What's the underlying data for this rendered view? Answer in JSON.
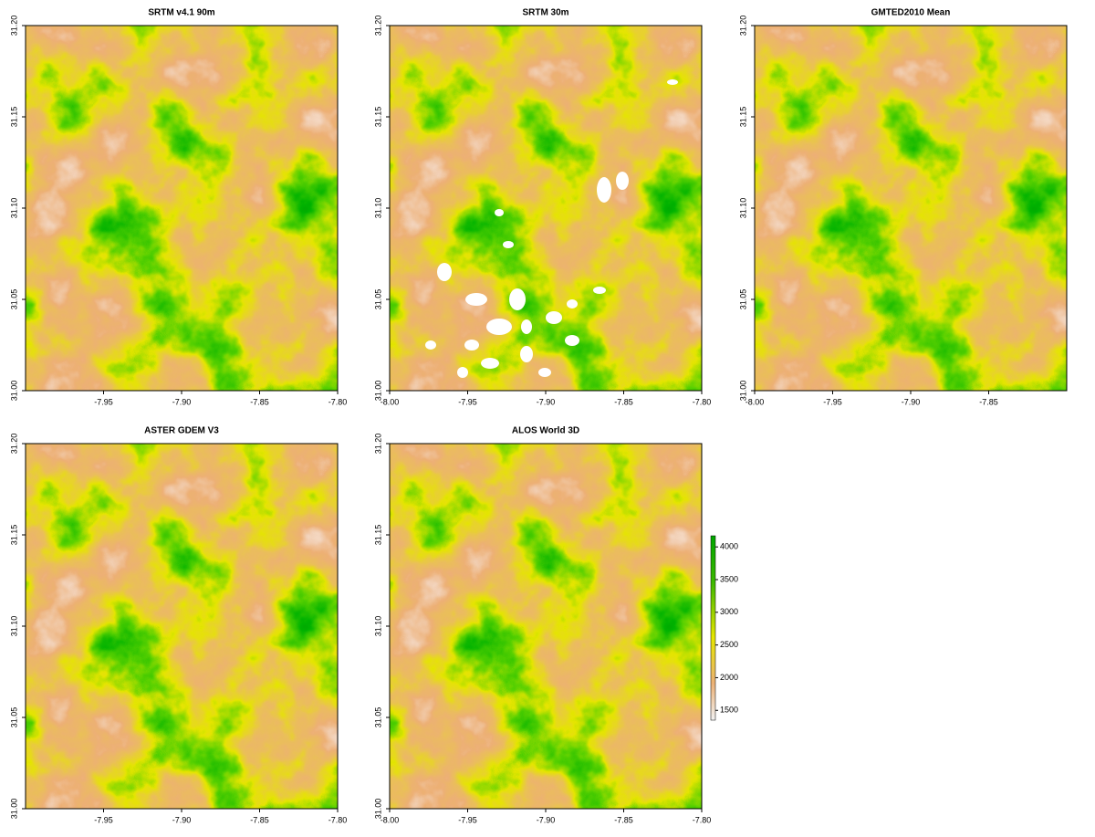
{
  "panels": [
    {
      "title": "SRTM v4.1 90m",
      "xlim": [
        -8.0,
        -7.8
      ],
      "ylim": [
        31.0,
        31.2
      ],
      "xticks": [
        -7.95,
        {
          "value": -7.9,
          "label": "-7.90"
        },
        -7.85,
        {
          "value": -7.8,
          "label": "-7.80"
        }
      ],
      "yticks": [
        {
          "value": 31.0,
          "label": "31.00"
        },
        31.05,
        {
          "value": 31.1,
          "label": "31.10"
        },
        31.15,
        {
          "value": 31.2,
          "label": "31.20"
        }
      ]
    },
    {
      "title": "SRTM 30m",
      "xlim": [
        -8.0,
        -7.8
      ],
      "ylim": [
        31.0,
        31.2
      ],
      "xticks": [
        {
          "value": -8.0,
          "label": "-8.00"
        },
        -7.95,
        {
          "value": -7.9,
          "label": "-7.90"
        },
        -7.85,
        {
          "value": -7.8,
          "label": "-7.80"
        }
      ],
      "yticks": [
        {
          "value": 31.0,
          "label": "31.00"
        },
        31.05,
        {
          "value": 31.1,
          "label": "31.10"
        },
        31.15,
        {
          "value": 31.2,
          "label": "31.20"
        }
      ]
    },
    {
      "title": "GMTED2010 Mean",
      "xlim": [
        -8.0,
        -7.8
      ],
      "ylim": [
        31.0,
        31.2
      ],
      "xticks": [
        {
          "value": -8.0,
          "label": "-8.00"
        },
        -7.95,
        {
          "value": -7.9,
          "label": "-7.90"
        },
        -7.85
      ],
      "yticks": [
        {
          "value": 31.0,
          "label": "31.00"
        },
        31.05,
        {
          "value": 31.1,
          "label": "31.10"
        },
        31.15,
        {
          "value": 31.2,
          "label": "31.20"
        }
      ]
    },
    {
      "title": "ASTER GDEM V3",
      "xlim": [
        -8.0,
        -7.8
      ],
      "ylim": [
        31.0,
        31.2
      ],
      "xticks": [
        -7.95,
        {
          "value": -7.9,
          "label": "-7.90"
        },
        -7.85,
        {
          "value": -7.8,
          "label": "-7.80"
        }
      ],
      "yticks": [
        {
          "value": 31.0,
          "label": "31.00"
        },
        31.05,
        {
          "value": 31.1,
          "label": "31.10"
        },
        31.15,
        {
          "value": 31.2,
          "label": "31.20"
        }
      ]
    },
    {
      "title": "ALOS World 3D",
      "xlim": [
        -8.0,
        -7.8
      ],
      "ylim": [
        31.0,
        31.2
      ],
      "xticks": [
        {
          "value": -8.0,
          "label": "-8.00"
        },
        -7.95,
        {
          "value": -7.9,
          "label": "-7.90"
        },
        -7.85,
        {
          "value": -7.8,
          "label": "-7.80"
        }
      ],
      "yticks": [
        {
          "value": 31.0,
          "label": "31.00"
        },
        31.05,
        {
          "value": 31.1,
          "label": "31.10"
        },
        31.15,
        {
          "value": 31.2,
          "label": "31.20"
        }
      ]
    }
  ],
  "legend": {
    "lim": [
      1350,
      4170
    ],
    "ticks": [
      1500,
      2000,
      2500,
      3000,
      3500,
      4000
    ]
  }
}
